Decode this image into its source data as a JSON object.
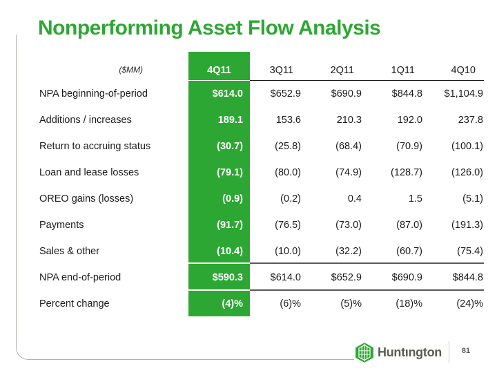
{
  "slide": {
    "title": "Nonperforming Asset Flow Analysis"
  },
  "table": {
    "unit_label": "($MM)",
    "columns": {
      "highlight": "4Q11",
      "others": [
        "3Q11",
        "2Q11",
        "1Q11",
        "4Q10"
      ]
    },
    "rows": [
      {
        "label": "NPA beginning-of-period",
        "highlight": "$614.0",
        "values": [
          "$652.9",
          "$690.9",
          "$844.8",
          "$1,104.9"
        ]
      },
      {
        "label": "Additions / increases",
        "highlight": "189.1",
        "values": [
          "153.6",
          "210.3",
          "192.0",
          "237.8"
        ]
      },
      {
        "label": "Return to accruing status",
        "highlight": "(30.7)",
        "values": [
          "(25.8)",
          "(68.4)",
          "(70.9)",
          "(100.1)"
        ]
      },
      {
        "label": "Loan and lease losses",
        "highlight": "(79.1)",
        "values": [
          "(80.0)",
          "(74.9)",
          "(128.7)",
          "(126.0)"
        ]
      },
      {
        "label": "OREO gains (losses)",
        "highlight": "(0.9)",
        "values": [
          "(0.2)",
          "0.4",
          "1.5",
          "(5.1)"
        ]
      },
      {
        "label": "Payments",
        "highlight": "(91.7)",
        "values": [
          "(76.5)",
          "(73.0)",
          "(87.0)",
          "(191.3)"
        ]
      },
      {
        "label": "Sales & other",
        "highlight": "(10.4)",
        "values": [
          "(10.0)",
          "(32.2)",
          "(60.7)",
          "(75.4)"
        ]
      },
      {
        "label": "NPA end-of-period",
        "highlight": "$590.3",
        "values": [
          "$614.0",
          "$652.9",
          "$690.9",
          "$844.8"
        ]
      },
      {
        "label": "Percent change",
        "highlight": "(4)%",
        "values": [
          "(6)%",
          "(5)%",
          "(18)%",
          "(24)%"
        ]
      }
    ]
  },
  "footer": {
    "logo_text": "Huntıngton",
    "page_number": "81"
  },
  "colors": {
    "accent_green": "#2DA733",
    "rule_dark": "#595959",
    "rule_black": "#1a1a1a",
    "logo_gray": "#5b5b52",
    "frame_gray": "#b2b2aa"
  }
}
